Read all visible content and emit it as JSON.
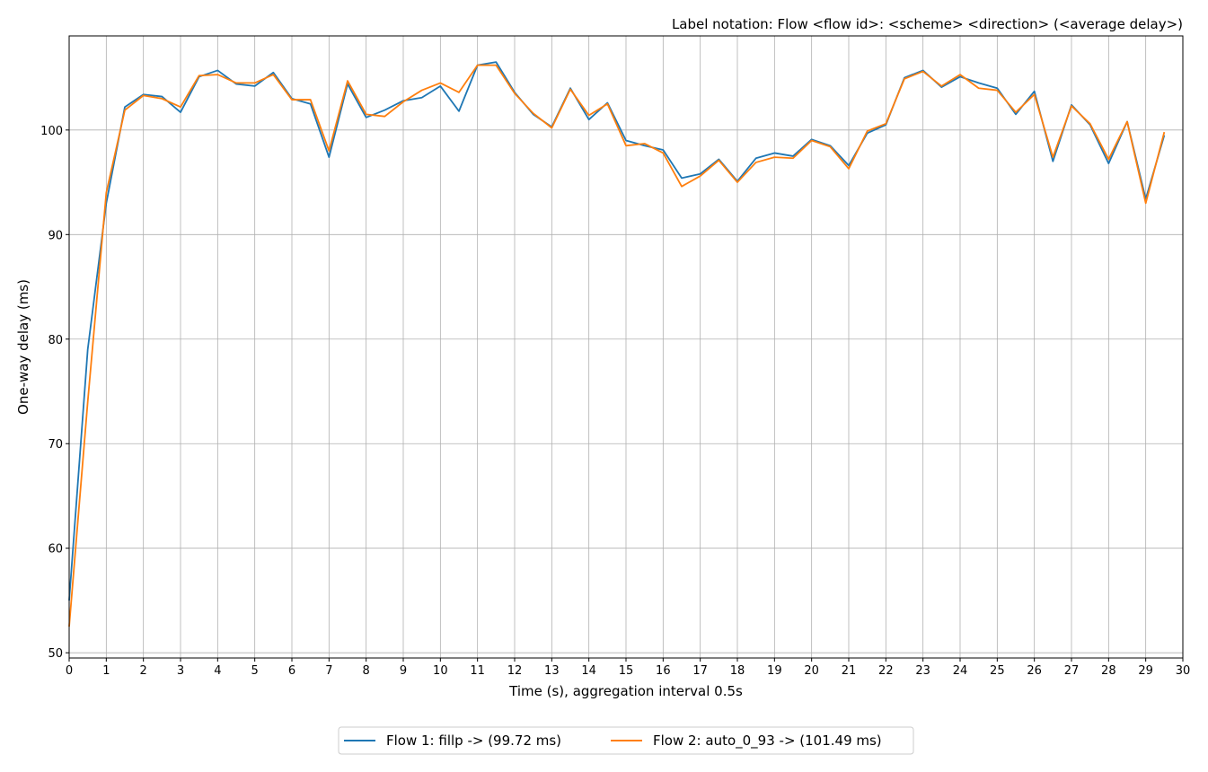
{
  "chart_data": {
    "type": "line",
    "title": "Label notation: Flow <flow id>: <scheme> <direction> (<average delay>)",
    "xlabel": "Time (s), aggregation interval 0.5s",
    "ylabel": "One-way delay (ms)",
    "xlim": [
      0,
      30
    ],
    "ylim": [
      49.5,
      109
    ],
    "xticks": [
      0,
      1,
      2,
      3,
      4,
      5,
      6,
      7,
      8,
      9,
      10,
      11,
      12,
      13,
      14,
      15,
      16,
      17,
      18,
      19,
      20,
      21,
      22,
      23,
      24,
      25,
      26,
      27,
      28,
      29,
      30
    ],
    "yticks": [
      50,
      60,
      70,
      80,
      90,
      100
    ],
    "grid": true,
    "legend_position": "bottom-center",
    "x": [
      0,
      0.5,
      1,
      1.5,
      2,
      2.5,
      3,
      3.5,
      4,
      4.5,
      5,
      5.5,
      6,
      6.5,
      7,
      7.5,
      8,
      8.5,
      9,
      9.5,
      10,
      10.5,
      11,
      11.5,
      12,
      12.5,
      13,
      13.5,
      14,
      14.5,
      15,
      15.5,
      16,
      16.5,
      17,
      17.5,
      18,
      18.5,
      19,
      19.5,
      20,
      20.5,
      21,
      21.5,
      22,
      22.5,
      23,
      23.5,
      24,
      24.5,
      25,
      25.5,
      26,
      26.5,
      27,
      27.5,
      28,
      28.5,
      29,
      29.5
    ],
    "series": [
      {
        "name": "Flow 1: fillp -> (99.72 ms)",
        "color": "#1f77b4",
        "values": [
          55.0,
          79.0,
          93.0,
          102.2,
          103.4,
          103.2,
          101.7,
          105.1,
          105.7,
          104.4,
          104.2,
          105.5,
          103.0,
          102.5,
          97.4,
          104.4,
          101.2,
          101.9,
          102.8,
          103.1,
          104.2,
          101.8,
          106.2,
          106.5,
          103.6,
          101.5,
          100.3,
          104.0,
          101.0,
          102.6,
          99.0,
          98.5,
          98.1,
          95.4,
          95.8,
          97.2,
          95.1,
          97.3,
          97.8,
          97.5,
          99.1,
          98.5,
          96.6,
          99.7,
          100.5,
          105.0,
          105.7,
          104.1,
          105.1,
          104.5,
          104.0,
          101.5,
          103.7,
          97.0,
          102.4,
          100.5,
          96.8,
          100.8,
          93.4,
          99.5
        ]
      },
      {
        "name": "Flow 2: auto_0_93 -> (101.49 ms)",
        "color": "#ff7f0e",
        "values": [
          52.5,
          74.0,
          94.0,
          101.9,
          103.3,
          103.0,
          102.2,
          105.2,
          105.3,
          104.5,
          104.5,
          105.3,
          102.9,
          102.9,
          98.0,
          104.7,
          101.5,
          101.3,
          102.7,
          103.8,
          104.5,
          103.6,
          106.2,
          106.2,
          103.5,
          101.6,
          100.2,
          103.9,
          101.4,
          102.5,
          98.5,
          98.7,
          97.8,
          94.6,
          95.6,
          97.1,
          95.0,
          96.9,
          97.4,
          97.3,
          99.0,
          98.4,
          96.3,
          99.9,
          100.6,
          104.9,
          105.6,
          104.2,
          105.3,
          104.0,
          103.8,
          101.7,
          103.4,
          97.4,
          102.3,
          100.6,
          97.2,
          100.8,
          93.0,
          99.8
        ]
      }
    ]
  }
}
